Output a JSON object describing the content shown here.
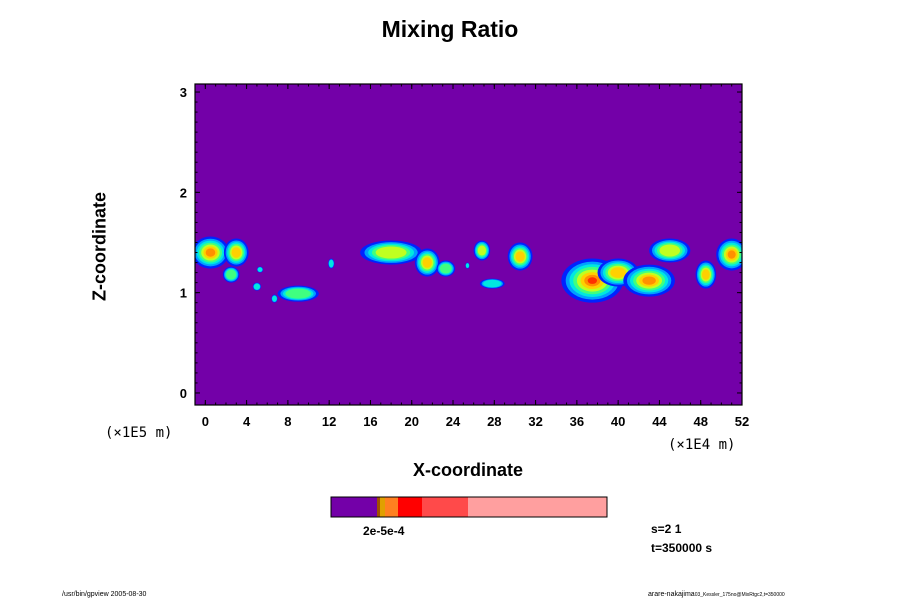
{
  "chart_data": {
    "type": "heatmap",
    "title": "Mixing Ratio",
    "xlabel": "X-coordinate",
    "ylabel": "Z-coordinate",
    "x_unit": "(×1E4 m)",
    "y_unit": "(×1E5 m)",
    "xlim": [
      -1,
      52
    ],
    "ylim": [
      -0.12,
      3.08
    ],
    "x_ticks": [
      0,
      4,
      8,
      12,
      16,
      20,
      24,
      28,
      32,
      36,
      40,
      44,
      48,
      52
    ],
    "y_ticks": [
      0,
      1,
      2,
      3
    ],
    "background_color": "#7300a8",
    "colorbar": {
      "labels_text": "2e-5e-4",
      "colors": [
        "#7300a8",
        "#a05000",
        "#e0a000",
        "#ff8020",
        "#ff0000",
        "#ff4a4a",
        "#ff9f9f"
      ]
    },
    "blobs": [
      {
        "cx": 0.5,
        "cy": 1.4,
        "rx": 1.8,
        "ry": 0.16
      },
      {
        "cx": 3.0,
        "cy": 1.4,
        "rx": 1.2,
        "ry": 0.14
      },
      {
        "cx": 2.5,
        "cy": 1.18,
        "rx": 0.8,
        "ry": 0.08
      },
      {
        "cx": 5.3,
        "cy": 1.23,
        "rx": 0.3,
        "ry": 0.03
      },
      {
        "cx": 5.0,
        "cy": 1.06,
        "rx": 0.4,
        "ry": 0.04
      },
      {
        "cx": 6.7,
        "cy": 0.94,
        "rx": 0.3,
        "ry": 0.04
      },
      {
        "cx": 9.0,
        "cy": 0.99,
        "rx": 2.0,
        "ry": 0.08
      },
      {
        "cx": 12.2,
        "cy": 1.29,
        "rx": 0.3,
        "ry": 0.05
      },
      {
        "cx": 18.0,
        "cy": 1.4,
        "rx": 3.0,
        "ry": 0.12
      },
      {
        "cx": 21.5,
        "cy": 1.3,
        "rx": 1.2,
        "ry": 0.14
      },
      {
        "cx": 23.3,
        "cy": 1.24,
        "rx": 0.9,
        "ry": 0.08
      },
      {
        "cx": 25.4,
        "cy": 1.27,
        "rx": 0.2,
        "ry": 0.03
      },
      {
        "cx": 26.8,
        "cy": 1.42,
        "rx": 0.8,
        "ry": 0.1
      },
      {
        "cx": 27.8,
        "cy": 1.09,
        "rx": 1.2,
        "ry": 0.05
      },
      {
        "cx": 30.5,
        "cy": 1.36,
        "rx": 1.2,
        "ry": 0.14
      },
      {
        "cx": 37.5,
        "cy": 1.12,
        "rx": 3.0,
        "ry": 0.22
      },
      {
        "cx": 40.0,
        "cy": 1.2,
        "rx": 2.0,
        "ry": 0.14
      },
      {
        "cx": 43.0,
        "cy": 1.12,
        "rx": 2.5,
        "ry": 0.16
      },
      {
        "cx": 45.0,
        "cy": 1.42,
        "rx": 2.0,
        "ry": 0.12
      },
      {
        "cx": 48.5,
        "cy": 1.18,
        "rx": 1.0,
        "ry": 0.14
      },
      {
        "cx": 51.0,
        "cy": 1.38,
        "rx": 1.5,
        "ry": 0.16
      }
    ]
  },
  "info": {
    "step": "s=2 1",
    "time": "t=350000 s",
    "footer_left": "/usr/bin/gpview 2005-08-30",
    "footer_right": "arare-nakajima",
    "footer_right_small": "03_Kessler_175no@MixRtgc2,t=350000"
  }
}
